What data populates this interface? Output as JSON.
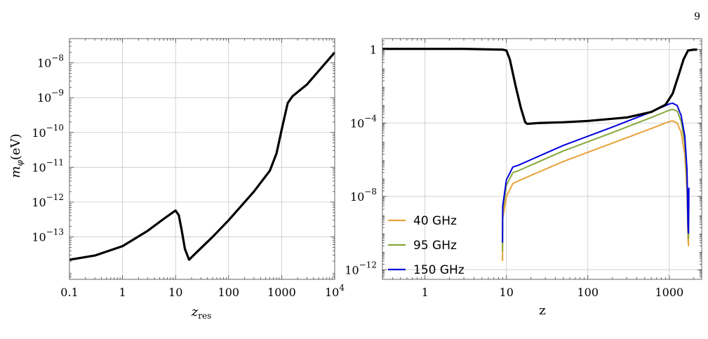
{
  "page_number": "9",
  "chart_data": [
    {
      "type": "line",
      "scale": "log-log",
      "xlim": [
        0.1,
        10000
      ],
      "ylim": [
        6e-15,
        5e-08
      ],
      "xlabel_main": "z",
      "xlabel_sub": "res",
      "ylabel_main": "m",
      "ylabel_sub": "φ",
      "ylabel_unit": "(eV)",
      "x_ticks": [
        {
          "value": 0.1,
          "label": "0.1"
        },
        {
          "value": 1,
          "label": "1"
        },
        {
          "value": 10,
          "label": "10"
        },
        {
          "value": 100,
          "label": "100"
        },
        {
          "value": 1000,
          "label": "1000"
        },
        {
          "value": 10000,
          "label": "10",
          "exp": "4"
        }
      ],
      "y_ticks": [
        {
          "value": 1e-13,
          "label": "10",
          "exp": "−13"
        },
        {
          "value": 1e-12,
          "label": "10",
          "exp": "−12"
        },
        {
          "value": 1e-11,
          "label": "10",
          "exp": "−11"
        },
        {
          "value": 1e-10,
          "label": "10",
          "exp": "−10"
        },
        {
          "value": 1e-09,
          "label": "10",
          "exp": "−9"
        },
        {
          "value": 1e-08,
          "label": "10",
          "exp": "−8"
        }
      ],
      "grid": true,
      "series": [
        {
          "color": "#000000",
          "points": [
            [
              0.1,
              2.2e-14
            ],
            [
              0.3,
              2.9e-14
            ],
            [
              1,
              5.4e-14
            ],
            [
              3,
              1.5e-13
            ],
            [
              6,
              3.3e-13
            ],
            [
              10,
              5.7e-13
            ],
            [
              11.5,
              4.2e-13
            ],
            [
              13,
              1.6e-13
            ],
            [
              15,
              4.5e-14
            ],
            [
              18,
              2.2e-14
            ],
            [
              25,
              3.6e-14
            ],
            [
              50,
              1e-13
            ],
            [
              100,
              3e-13
            ],
            [
              300,
              2e-12
            ],
            [
              600,
              8e-12
            ],
            [
              800,
              2.5e-11
            ],
            [
              1000,
              1.2e-10
            ],
            [
              1300,
              7e-10
            ],
            [
              1600,
              1.1e-09
            ],
            [
              3000,
              2.4e-09
            ],
            [
              10000,
              2e-08
            ]
          ]
        }
      ]
    },
    {
      "type": "line",
      "scale": "log-log",
      "xlim": [
        0.3,
        2500
      ],
      "ylim": [
        3e-13,
        4
      ],
      "xlabel_main": "z",
      "x_ticks": [
        {
          "value": 1,
          "label": "1"
        },
        {
          "value": 10,
          "label": "10"
        },
        {
          "value": 100,
          "label": "100"
        },
        {
          "value": 1000,
          "label": "1000"
        }
      ],
      "y_ticks": [
        {
          "value": 1e-12,
          "label": "10",
          "exp": "−12"
        },
        {
          "value": 1e-08,
          "label": "10",
          "exp": "−8"
        },
        {
          "value": 0.0001,
          "label": "10",
          "exp": "−4"
        },
        {
          "value": 1,
          "label": "1",
          "exp": ""
        }
      ],
      "grid": true,
      "legend_position": "bottom-left",
      "series": [
        {
          "color": "#000000",
          "points": [
            [
              0.3,
              1.1
            ],
            [
              3,
              1.1
            ],
            [
              9,
              1.0
            ],
            [
              10,
              0.9
            ],
            [
              11,
              0.3
            ],
            [
              13,
              0.01
            ],
            [
              15,
              0.0007
            ],
            [
              17,
              0.00011
            ],
            [
              18,
              9e-05
            ],
            [
              25,
              0.0001
            ],
            [
              50,
              0.00011
            ],
            [
              100,
              0.00013
            ],
            [
              300,
              0.0002
            ],
            [
              600,
              0.0004
            ],
            [
              900,
              0.001
            ],
            [
              1100,
              0.004
            ],
            [
              1300,
              0.04
            ],
            [
              1500,
              0.3
            ],
            [
              1700,
              0.9
            ],
            [
              2000,
              1.0
            ],
            [
              2200,
              1.0
            ]
          ]
        },
        {
          "name": "40 GHz",
          "color": "#e8a23a",
          "points": [
            [
              8.95,
              3e-12
            ],
            [
              9,
              6e-10
            ],
            [
              10,
              1e-08
            ],
            [
              12,
              5e-08
            ],
            [
              14,
              7e-08
            ],
            [
              50,
              8e-07
            ],
            [
              200,
              8e-06
            ],
            [
              600,
              5e-05
            ],
            [
              1000,
              0.00012
            ],
            [
              1100,
              0.00013
            ],
            [
              1250,
              0.0001
            ],
            [
              1400,
              3e-05
            ],
            [
              1550,
              2e-06
            ],
            [
              1650,
              2e-08
            ],
            [
              1700,
              5e-11
            ],
            [
              1720,
              2e-11
            ],
            [
              1740,
              3e-09
            ]
          ]
        },
        {
          "name": "95 GHz",
          "color": "#86a83a",
          "points": [
            [
              8.95,
              1e-11
            ],
            [
              9,
              1.5e-09
            ],
            [
              10,
              4e-08
            ],
            [
              12,
              2e-07
            ],
            [
              14,
              2.5e-07
            ],
            [
              50,
              3e-06
            ],
            [
              200,
              3e-05
            ],
            [
              600,
              0.0002
            ],
            [
              1000,
              0.0005
            ],
            [
              1100,
              0.00055
            ],
            [
              1250,
              0.00045
            ],
            [
              1400,
              0.00012
            ],
            [
              1550,
              8e-06
            ],
            [
              1650,
              1e-07
            ],
            [
              1700,
              1e-10
            ],
            [
              1720,
              5e-11
            ],
            [
              1740,
              1e-08
            ]
          ]
        },
        {
          "name": "150 GHz",
          "color": "#0000e0",
          "points": [
            [
              8.95,
              3e-11
            ],
            [
              9,
              3e-09
            ],
            [
              10,
              8e-08
            ],
            [
              12,
              4e-07
            ],
            [
              14,
              5e-07
            ],
            [
              50,
              6e-06
            ],
            [
              200,
              6e-05
            ],
            [
              600,
              0.0004
            ],
            [
              1000,
              0.0011
            ],
            [
              1100,
              0.0012
            ],
            [
              1250,
              0.0009
            ],
            [
              1400,
              0.00025
            ],
            [
              1550,
              2e-05
            ],
            [
              1650,
              3e-07
            ],
            [
              1700,
              2e-10
            ],
            [
              1720,
              1e-10
            ],
            [
              1740,
              3e-08
            ]
          ]
        }
      ]
    }
  ]
}
